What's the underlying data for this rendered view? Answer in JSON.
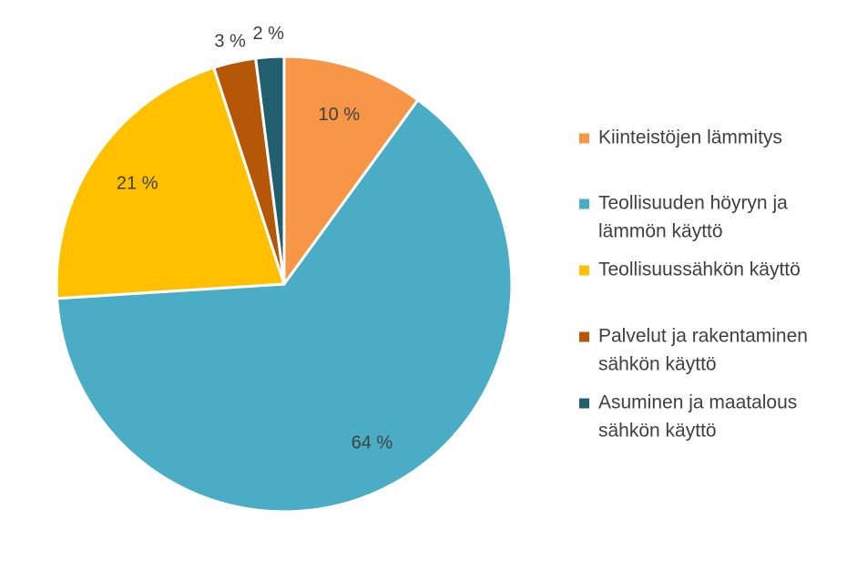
{
  "chart_data": {
    "type": "pie",
    "title": "",
    "start_angle_deg": 0,
    "direction": "clockwise",
    "legend_position": "right",
    "slices": [
      {
        "label": "Kiinteistöjen lämmitys",
        "value": 10,
        "display": "10 %",
        "color": "#F79646",
        "legend_lines": [
          "Kiinteistöjen lämmitys"
        ]
      },
      {
        "label": "Teollisuuden höyryn ja lämmön käyttö",
        "value": 64,
        "display": "64 %",
        "color": "#4BACC6",
        "legend_lines": [
          "Teollisuuden höyryn ja",
          "lämmön käyttö"
        ]
      },
      {
        "label": "Teollisuussähkön käyttö",
        "value": 21,
        "display": "21 %",
        "color": "#FFC000",
        "legend_lines": [
          "Teollisuussähkön käyttö"
        ]
      },
      {
        "label": "Palvelut ja rakentaminen sähkön käyttö",
        "value": 3,
        "display": "3 %",
        "color": "#B65708",
        "legend_lines": [
          "Palvelut ja rakentaminen",
          "sähkön käyttö"
        ]
      },
      {
        "label": "Asuminen ja maatalous sähkön käyttö",
        "value": 2,
        "display": "2 %",
        "color": "#215F6E",
        "legend_lines": [
          "Asuminen ja maatalous",
          "sähkön käyttö"
        ]
      }
    ]
  }
}
